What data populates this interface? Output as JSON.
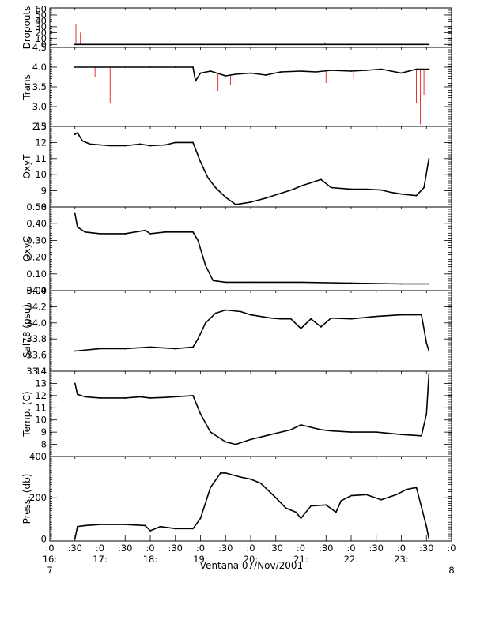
{
  "xlabel": "Ventana 07/Nov/2001",
  "xticks": [
    {
      "t": 0,
      "label": ":0",
      "hour": "16:",
      "day": "7"
    },
    {
      "t": 0.5,
      "label": ":30",
      "hour": "",
      "day": ""
    },
    {
      "t": 1,
      "label": ":0",
      "hour": "17:",
      "day": ""
    },
    {
      "t": 1.5,
      "label": ":30",
      "hour": "",
      "day": ""
    },
    {
      "t": 2,
      "label": ":0",
      "hour": "18:",
      "day": ""
    },
    {
      "t": 2.5,
      "label": ":30",
      "hour": "",
      "day": ""
    },
    {
      "t": 3,
      "label": ":0",
      "hour": "19:",
      "day": ""
    },
    {
      "t": 3.5,
      "label": ":30",
      "hour": "",
      "day": ""
    },
    {
      "t": 4,
      "label": ":0",
      "hour": "20:",
      "day": ""
    },
    {
      "t": 4.5,
      "label": ":30",
      "hour": "",
      "day": ""
    },
    {
      "t": 5,
      "label": ":0",
      "hour": "21:",
      "day": ""
    },
    {
      "t": 5.5,
      "label": ":30",
      "hour": "",
      "day": ""
    },
    {
      "t": 6,
      "label": ":0",
      "hour": "22:",
      "day": ""
    },
    {
      "t": 6.5,
      "label": ":30",
      "hour": "",
      "day": ""
    },
    {
      "t": 7,
      "label": ":0",
      "hour": "23:",
      "day": ""
    },
    {
      "t": 7.5,
      "label": ":30",
      "hour": "",
      "day": ""
    },
    {
      "t": 8,
      "label": ":0",
      "hour": "",
      "day": "8"
    }
  ],
  "chart_data": [
    {
      "type": "line",
      "ylabel": "Dropouts",
      "ylim": [
        -5,
        62
      ],
      "ytick_labels": [
        "0",
        "10",
        "20",
        "30",
        "40",
        "50",
        "60"
      ],
      "yticks": [
        0,
        10,
        20,
        30,
        40,
        50,
        60
      ],
      "x": [
        0.5,
        0.55,
        0.6,
        1.0,
        2.0,
        3.0,
        4.0,
        5.0,
        6.0,
        7.0,
        7.55
      ],
      "y": [
        0,
        0,
        0,
        0,
        0,
        0,
        0,
        0,
        0,
        0,
        0
      ],
      "spikes": [
        {
          "x": 0.52,
          "y": 35
        },
        {
          "x": 0.56,
          "y": 28
        },
        {
          "x": 0.61,
          "y": 20
        },
        {
          "x": 5.48,
          "y": 4
        }
      ]
    },
    {
      "type": "line",
      "ylabel": "Trans",
      "ylim": [
        2.5,
        4.5
      ],
      "ytick_labels": [
        "2.5",
        "3.0",
        "3.5",
        "4.0",
        "4.5"
      ],
      "yticks": [
        2.5,
        3.0,
        3.5,
        4.0,
        4.5
      ],
      "x": [
        0.5,
        1.0,
        1.5,
        2.0,
        2.5,
        2.85,
        2.9,
        3.0,
        3.2,
        3.5,
        3.7,
        4.0,
        4.3,
        4.6,
        5.0,
        5.3,
        5.6,
        6.0,
        6.3,
        6.6,
        7.0,
        7.3,
        7.55
      ],
      "y": [
        4.0,
        4.0,
        4.0,
        4.0,
        4.0,
        4.0,
        3.65,
        3.85,
        3.9,
        3.78,
        3.82,
        3.85,
        3.8,
        3.88,
        3.9,
        3.88,
        3.92,
        3.9,
        3.92,
        3.95,
        3.85,
        3.95,
        3.95
      ],
      "spikes": [
        {
          "x": 1.2,
          "y": 3.1
        },
        {
          "x": 0.9,
          "y": 3.75
        },
        {
          "x": 3.35,
          "y": 3.4
        },
        {
          "x": 3.6,
          "y": 3.55
        },
        {
          "x": 5.5,
          "y": 3.6
        },
        {
          "x": 6.05,
          "y": 3.7
        },
        {
          "x": 7.3,
          "y": 3.1
        },
        {
          "x": 7.38,
          "y": 2.55
        },
        {
          "x": 7.45,
          "y": 3.3
        }
      ]
    },
    {
      "type": "line",
      "ylabel": "OxyT",
      "ylim": [
        8,
        13
      ],
      "ytick_labels": [
        "8",
        "9",
        "10",
        "11",
        "12",
        "13"
      ],
      "yticks": [
        8,
        9,
        10,
        11,
        12,
        13
      ],
      "x": [
        0.5,
        0.55,
        0.65,
        0.8,
        1.2,
        1.5,
        1.8,
        2.0,
        2.3,
        2.5,
        2.85,
        3.0,
        3.15,
        3.3,
        3.5,
        3.7,
        4.0,
        4.3,
        4.6,
        4.85,
        5.0,
        5.2,
        5.4,
        5.6,
        6.0,
        6.3,
        6.6,
        6.8,
        7.0,
        7.3,
        7.45,
        7.55
      ],
      "y": [
        12.5,
        12.6,
        12.1,
        11.9,
        11.8,
        11.8,
        11.9,
        11.8,
        11.85,
        12.0,
        12.0,
        10.8,
        9.8,
        9.2,
        8.6,
        8.15,
        8.3,
        8.55,
        8.85,
        9.1,
        9.3,
        9.5,
        9.7,
        9.2,
        9.1,
        9.1,
        9.05,
        8.9,
        8.8,
        8.7,
        9.2,
        11.0
      ]
    },
    {
      "type": "line",
      "ylabel": "OxyC",
      "ylim": [
        0.0,
        0.5
      ],
      "ytick_labels": [
        "0.00",
        "0.10",
        "0.20",
        "0.30",
        "0.40",
        "0.50"
      ],
      "yticks": [
        0.0,
        0.1,
        0.2,
        0.3,
        0.4,
        0.5
      ],
      "x": [
        0.5,
        0.55,
        0.7,
        1.0,
        1.5,
        1.9,
        2.0,
        2.3,
        2.85,
        2.95,
        3.1,
        3.25,
        3.5,
        4.0,
        5.0,
        6.0,
        7.0,
        7.55
      ],
      "y": [
        0.46,
        0.38,
        0.35,
        0.34,
        0.34,
        0.36,
        0.34,
        0.35,
        0.35,
        0.3,
        0.15,
        0.06,
        0.05,
        0.05,
        0.05,
        0.045,
        0.04,
        0.04
      ]
    },
    {
      "type": "line",
      "ylabel": "Sal78 (psu)",
      "ylim": [
        33.4,
        34.4
      ],
      "ytick_labels": [
        "33.4",
        "33.6",
        "33.8",
        "34.0",
        "34.2",
        "34.4"
      ],
      "yticks": [
        33.4,
        33.6,
        33.8,
        34.0,
        34.2,
        34.4
      ],
      "x": [
        0.5,
        1.0,
        1.5,
        2.0,
        2.5,
        2.85,
        2.95,
        3.1,
        3.3,
        3.5,
        3.8,
        4.0,
        4.4,
        4.6,
        4.8,
        5.0,
        5.2,
        5.4,
        5.6,
        6.0,
        6.5,
        7.0,
        7.4,
        7.5,
        7.55
      ],
      "y": [
        33.65,
        33.68,
        33.68,
        33.7,
        33.68,
        33.7,
        33.8,
        34.0,
        34.12,
        34.16,
        34.14,
        34.1,
        34.06,
        34.05,
        34.05,
        33.93,
        34.05,
        33.95,
        34.06,
        34.05,
        34.08,
        34.1,
        34.1,
        33.75,
        33.65
      ]
    },
    {
      "type": "line",
      "ylabel": "Temp. (C)",
      "ylim": [
        7,
        14
      ],
      "ytick_labels": [
        "8",
        "9",
        "10",
        "11",
        "12",
        "13",
        "14"
      ],
      "yticks": [
        8,
        9,
        10,
        11,
        12,
        13,
        14
      ],
      "x": [
        0.5,
        0.55,
        0.7,
        1.0,
        1.5,
        1.8,
        2.0,
        2.3,
        2.85,
        3.0,
        3.2,
        3.5,
        3.7,
        4.0,
        4.4,
        4.8,
        5.0,
        5.4,
        5.6,
        6.0,
        6.5,
        7.0,
        7.4,
        7.5,
        7.55
      ],
      "y": [
        13.0,
        12.1,
        11.9,
        11.8,
        11.8,
        11.9,
        11.8,
        11.85,
        12.0,
        10.5,
        9.0,
        8.2,
        8.0,
        8.4,
        8.8,
        9.2,
        9.6,
        9.2,
        9.1,
        9.0,
        9.0,
        8.8,
        8.7,
        10.5,
        13.8
      ]
    },
    {
      "type": "line",
      "ylabel": "Press. (db)",
      "ylim": [
        -10,
        400
      ],
      "ytick_labels": [
        "0",
        "200",
        "400"
      ],
      "yticks": [
        0,
        200,
        400
      ],
      "x": [
        0.5,
        0.55,
        0.7,
        1.0,
        1.5,
        1.9,
        2.0,
        2.2,
        2.5,
        2.85,
        3.0,
        3.2,
        3.4,
        3.5,
        3.8,
        4.0,
        4.2,
        4.5,
        4.7,
        4.9,
        5.0,
        5.2,
        5.5,
        5.7,
        5.8,
        6.0,
        6.3,
        6.6,
        6.9,
        7.1,
        7.3,
        7.5,
        7.55
      ],
      "y": [
        0,
        60,
        65,
        70,
        70,
        65,
        40,
        60,
        50,
        50,
        100,
        250,
        320,
        320,
        300,
        290,
        270,
        200,
        150,
        130,
        100,
        160,
        165,
        130,
        185,
        210,
        215,
        190,
        215,
        240,
        250,
        60,
        0
      ]
    }
  ]
}
